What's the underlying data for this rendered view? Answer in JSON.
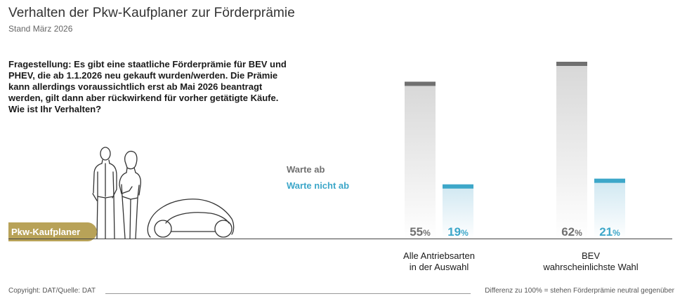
{
  "header": {
    "title": "Verhalten der Pkw-Kaufplaner zur Förderprämie",
    "subtitle": "Stand März 2026"
  },
  "question": "Fragestellung: Es gibt eine staatliche Förderprämie für BEV und PHEV, die ab 1.1.2026 neu gekauft wurden/werden. Die Prämie kann allerdings voraussichtlich erst ab Mai 2026 beantragt werden, gilt dann aber rückwirkend für vorher getätigte Käufe. Wie ist Ihr Verhalten?",
  "group_tag": "Pkw-Kaufplaner",
  "footer": {
    "copyright": "Copyright: DAT/Quelle: DAT",
    "note": "Differenz zu 100% = stehen Förderprämie neutral gegenüber"
  },
  "colors": {
    "warte_ab": "#707070",
    "warte_nicht_ab": "#3da7c9",
    "tag": "#b8a258"
  },
  "chart_data": {
    "type": "bar",
    "title": "Verhalten der Pkw-Kaufplaner zur Förderprämie",
    "categories": [
      "Alle Antriebsarten in der Auswahl",
      "BEV wahrscheinlichste Wahl"
    ],
    "category_lines": [
      [
        "Alle Antriebsarten",
        "in der Auswahl"
      ],
      [
        "BEV",
        "wahrscheinlichste Wahl"
      ]
    ],
    "series": [
      {
        "name": "Warte ab",
        "values": [
          55,
          62
        ]
      },
      {
        "name": "Warte nicht ab",
        "values": [
          19,
          21
        ]
      }
    ],
    "value_suffix": "%",
    "ylim": [
      0,
      62
    ],
    "legend": "left",
    "grid": false
  }
}
